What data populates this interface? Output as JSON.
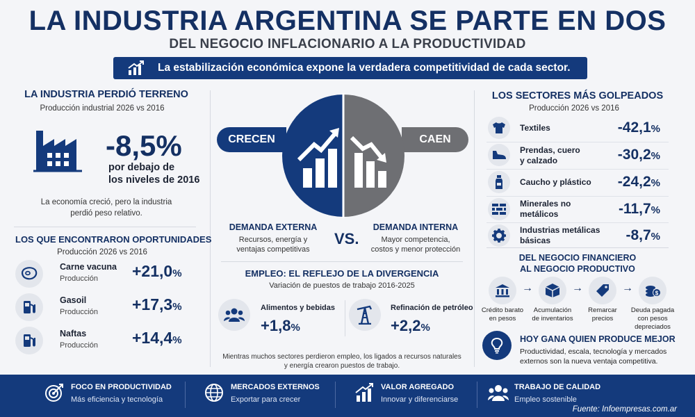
{
  "header": {
    "title": "LA INDUSTRIA ARGENTINA SE PARTE EN DOS",
    "subtitle": "DEL NEGOCIO INFLACIONARIO A LA PRODUCTIVIDAD",
    "banner": "La estabilización económica expone la verdadera competitividad de cada sector."
  },
  "left": {
    "title": "LA INDUSTRIA PERDIÓ TERRENO",
    "subtitle": "Producción industrial 2026 vs 2016",
    "big_value": "-8,5%",
    "big_desc_1": "por debajo de",
    "big_desc_2": "los niveles de 2016",
    "note_1": "La economía creció, pero la industria",
    "note_2": "perdió peso relativo.",
    "opp_title": "LOS QUE ENCONTRARON OPORTUNIDADES",
    "opp_subtitle": "Producción 2026 vs 2016",
    "opportunities": [
      {
        "name": "Carne vacuna",
        "sub": "Producción",
        "value": "+21,0",
        "unit": "%"
      },
      {
        "name": "Gasoil",
        "sub": "Producción",
        "value": "+17,3",
        "unit": "%"
      },
      {
        "name": "Naftas",
        "sub": "Producción",
        "value": "+14,4",
        "unit": "%"
      }
    ]
  },
  "center": {
    "grow": "CRECEN",
    "fall": "CAEN",
    "vs": "VS.",
    "ext_title": "DEMANDA EXTERNA",
    "ext_desc_1": "Recursos, energía y",
    "ext_desc_2": "ventajas competitivas",
    "int_title": "DEMANDA INTERNA",
    "int_desc_1": "Mayor competencia,",
    "int_desc_2": "costos y menor protección",
    "emp_title": "EMPLEO: EL REFLEJO DE LA DIVERGENCIA",
    "emp_subtitle": "Variación de puestos de trabajo 2016-2025",
    "employment": [
      {
        "name": "Alimentos y bebidas",
        "value": "+1,8",
        "unit": "%"
      },
      {
        "name": "Refinación de petróleo",
        "value": "+2,2",
        "unit": "%"
      }
    ],
    "emp_note_1": "Mientras muchos sectores perdieron empleo, los ligados a recursos naturales",
    "emp_note_2": "y energía crearon puestos de trabajo."
  },
  "right": {
    "title": "LOS SECTORES MÁS GOLPEADOS",
    "subtitle": "Producción 2026 vs 2016",
    "sectors": [
      {
        "line1": "Textiles",
        "line2": "",
        "value": "-42,1",
        "unit": "%",
        "icon": "shirt-icon"
      },
      {
        "line1": "Prendas, cuero",
        "line2": "y calzado",
        "value": "-30,2",
        "unit": "%",
        "icon": "shoe-icon"
      },
      {
        "line1": "Caucho y plástico",
        "line2": "",
        "value": "-24,2",
        "unit": "%",
        "icon": "bottle-icon"
      },
      {
        "line1": "Minerales no",
        "line2": "metálicos",
        "value": "-11,7",
        "unit": "%",
        "icon": "bricks-icon"
      },
      {
        "line1": "Industrias metálicas",
        "line2": "básicas",
        "value": "-8,7",
        "unit": "%",
        "icon": "gear-icon"
      }
    ],
    "flow_title_1": "DEL NEGOCIO FINANCIERO",
    "flow_title_2": "AL NEGOCIO PRODUCTIVO",
    "flow": [
      {
        "l1": "Crédito barato",
        "l2": "en pesos",
        "l3": ""
      },
      {
        "l1": "Acumulación",
        "l2": "de inventarios",
        "l3": ""
      },
      {
        "l1": "Remarcar",
        "l2": "precios",
        "l3": ""
      },
      {
        "l1": "Deuda pagada",
        "l2": "con pesos",
        "l3": "depreciados"
      }
    ],
    "gana_title": "HOY GANA QUIEN PRODUCE MEJOR",
    "gana_desc_1": "Productividad, escala, tecnología y mercados",
    "gana_desc_2": "externos son la nueva ventaja competitiva."
  },
  "footer": {
    "items": [
      {
        "title": "FOCO EN PRODUCTIVIDAD",
        "sub": "Más eficiencia y tecnología"
      },
      {
        "title": "MERCADOS EXTERNOS",
        "sub": "Exportar para crecer"
      },
      {
        "title": "VALOR AGREGADO",
        "sub": "Innovar y diferenciarse"
      },
      {
        "title": "TRABAJO DE CALIDAD",
        "sub": "Empleo sostenible"
      }
    ],
    "source": "Fuente: Infoempresas.com.ar"
  },
  "colors": {
    "navy": "#143063",
    "banner": "#143a7c",
    "gray": "#6e6f73"
  }
}
